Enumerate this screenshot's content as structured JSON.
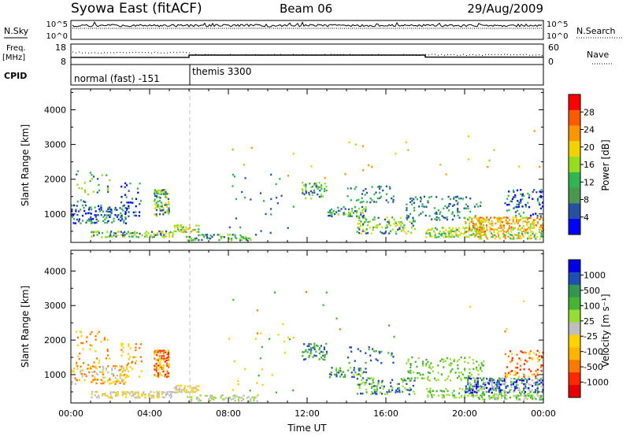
{
  "header": {
    "station": "Syowa East (fitACF)",
    "beam": "Beam 06",
    "date": "29/Aug/2009"
  },
  "sky_panel": {
    "left_label": "N.Sky",
    "left_ticks": [
      "10^5",
      "10^0"
    ],
    "right_ticks": [
      "10^5",
      "10^0"
    ],
    "right_label": "N.Search"
  },
  "freq_panel": {
    "left_label_line1": "Freq.",
    "left_label_line2": "[MHz]",
    "left_ticks": [
      "18",
      "8"
    ],
    "right_ticks": [
      "60",
      "0"
    ],
    "right_label": "Nave",
    "freq_steps": [
      {
        "start_h": 0,
        "end_h": 6,
        "mhz": 11.5
      },
      {
        "start_h": 6,
        "end_h": 18,
        "mhz": 12.6
      },
      {
        "start_h": 18,
        "end_h": 24,
        "mhz": 11.6
      }
    ]
  },
  "cpid": {
    "label": "CPID",
    "modes": [
      {
        "name": "normal (fast) -151",
        "start_h": 0,
        "end_h": 6
      },
      {
        "name": "themis 3300",
        "start_h": 6,
        "end_h": 24
      }
    ]
  },
  "power_colorbar": {
    "label": "Power [dB]",
    "ticks": [
      "28",
      "24",
      "20",
      "16",
      "12",
      "8",
      "4"
    ],
    "colors": [
      "#ff0000",
      "#ff5a00",
      "#ff9600",
      "#f0d200",
      "#96dc1e",
      "#32b450",
      "#4b9650",
      "#2850a0",
      "#0000ff"
    ]
  },
  "velocity_colorbar": {
    "label": "Velocity [m s⁻¹]",
    "ticks": [
      "1000",
      "500",
      "100",
      "25",
      "-25",
      "-100",
      "-500",
      "-1000"
    ],
    "colors": [
      "#0000e6",
      "#1e50b4",
      "#329650",
      "#46b432",
      "#96dc32",
      "#bebebe",
      "#ffd200",
      "#ffb400",
      "#ff7800",
      "#ff2800",
      "#e60000"
    ]
  },
  "chart_data": [
    {
      "type": "heatmap",
      "name": "power",
      "xlabel": "",
      "ylabel": "Slant Range [km]",
      "xlim": [
        0,
        24
      ],
      "ylim": [
        180,
        4600
      ],
      "y_ticks": [
        1000,
        2000,
        3000,
        4000
      ],
      "x_ticks": [
        0,
        4,
        8,
        12,
        16,
        20,
        24
      ],
      "mode_change_h": 6,
      "regions": [
        {
          "t0": 0.0,
          "t1": 2.8,
          "r0": 700,
          "r1": 1250,
          "density": 0.35,
          "levels": [
            8,
            4,
            12
          ]
        },
        {
          "t0": 0.2,
          "t1": 2.0,
          "r0": 1250,
          "r1": 2250,
          "density": 0.1,
          "levels": [
            8,
            12,
            16
          ]
        },
        {
          "t0": 2.5,
          "t1": 3.6,
          "r0": 900,
          "r1": 1900,
          "density": 0.18,
          "levels": [
            8,
            4,
            12
          ]
        },
        {
          "t0": 4.2,
          "t1": 5.0,
          "r0": 900,
          "r1": 1700,
          "density": 0.55,
          "levels": [
            12,
            16,
            8,
            20
          ]
        },
        {
          "t0": 1.0,
          "t1": 5.2,
          "r0": 300,
          "r1": 500,
          "density": 0.45,
          "levels": [
            12,
            16,
            20,
            8
          ]
        },
        {
          "t0": 5.2,
          "t1": 6.5,
          "r0": 450,
          "r1": 680,
          "density": 0.55,
          "levels": [
            12,
            16,
            20,
            24
          ]
        },
        {
          "t0": 5.8,
          "t1": 9.5,
          "r0": 200,
          "r1": 400,
          "density": 0.3,
          "levels": [
            8,
            12,
            16
          ]
        },
        {
          "t0": 8.0,
          "t1": 11.5,
          "r0": 400,
          "r1": 2200,
          "density": 0.02,
          "levels": [
            8,
            12
          ]
        },
        {
          "t0": 11.7,
          "t1": 13.0,
          "r0": 1400,
          "r1": 1900,
          "density": 0.35,
          "levels": [
            8,
            12,
            16
          ]
        },
        {
          "t0": 13.0,
          "t1": 15.0,
          "r0": 900,
          "r1": 1200,
          "density": 0.35,
          "levels": [
            8,
            12,
            16
          ]
        },
        {
          "t0": 14.0,
          "t1": 16.5,
          "r0": 1300,
          "r1": 1800,
          "density": 0.15,
          "levels": [
            8,
            12
          ]
        },
        {
          "t0": 14.5,
          "t1": 17.5,
          "r0": 400,
          "r1": 900,
          "density": 0.3,
          "levels": [
            8,
            12,
            16,
            20
          ]
        },
        {
          "t0": 17.0,
          "t1": 21.0,
          "r0": 800,
          "r1": 1500,
          "density": 0.18,
          "levels": [
            8,
            12
          ]
        },
        {
          "t0": 18.0,
          "t1": 21.0,
          "r0": 300,
          "r1": 600,
          "density": 0.4,
          "levels": [
            12,
            16,
            20
          ]
        },
        {
          "t0": 20.0,
          "t1": 24.0,
          "r0": 450,
          "r1": 900,
          "density": 0.5,
          "levels": [
            20,
            24,
            28,
            16
          ]
        },
        {
          "t0": 20.5,
          "t1": 24.0,
          "r0": 250,
          "r1": 450,
          "density": 0.45,
          "levels": [
            16,
            20,
            24,
            12
          ]
        },
        {
          "t0": 22.0,
          "t1": 24.0,
          "r0": 900,
          "r1": 1700,
          "density": 0.2,
          "levels": [
            8,
            12,
            4
          ]
        },
        {
          "t0": 8.0,
          "t1": 24.0,
          "r0": 2000,
          "r1": 3400,
          "density": 0.004,
          "levels": [
            16,
            20,
            24
          ]
        }
      ]
    },
    {
      "type": "heatmap",
      "name": "velocity",
      "xlabel": "Time UT",
      "ylabel": "Slant Range [km]",
      "xlim": [
        0,
        24
      ],
      "ylim": [
        180,
        4600
      ],
      "y_ticks": [
        1000,
        2000,
        3000,
        4000
      ],
      "x_ticks": [
        0,
        4,
        8,
        12,
        16,
        20,
        24
      ],
      "x_tick_labels": [
        "00:00",
        "04:00",
        "08:00",
        "12:00",
        "16:00",
        "20:00",
        "00:00"
      ],
      "mode_change_h": 6,
      "regions": [
        {
          "t0": 0.0,
          "t1": 2.8,
          "r0": 700,
          "r1": 1250,
          "density": 0.35,
          "levels": [
            -100,
            -500,
            -25
          ]
        },
        {
          "t0": 0.2,
          "t1": 2.0,
          "r0": 1250,
          "r1": 2250,
          "density": 0.1,
          "levels": [
            -100,
            -500
          ]
        },
        {
          "t0": 2.5,
          "t1": 3.6,
          "r0": 900,
          "r1": 1900,
          "density": 0.18,
          "levels": [
            -100,
            -500
          ]
        },
        {
          "t0": 4.2,
          "t1": 5.0,
          "r0": 900,
          "r1": 1700,
          "density": 0.55,
          "levels": [
            -500,
            -100,
            -1000
          ]
        },
        {
          "t0": 1.0,
          "t1": 5.2,
          "r0": 300,
          "r1": 500,
          "density": 0.45,
          "levels": [
            -25,
            -100
          ]
        },
        {
          "t0": 5.2,
          "t1": 6.5,
          "r0": 450,
          "r1": 680,
          "density": 0.55,
          "levels": [
            -25,
            -100
          ]
        },
        {
          "t0": 5.8,
          "t1": 9.5,
          "r0": 200,
          "r1": 400,
          "density": 0.3,
          "levels": [
            25,
            -25
          ]
        },
        {
          "t0": 8.0,
          "t1": 11.5,
          "r0": 400,
          "r1": 2200,
          "density": 0.02,
          "levels": [
            -100,
            100
          ]
        },
        {
          "t0": 11.7,
          "t1": 13.0,
          "r0": 1400,
          "r1": 1900,
          "density": 0.35,
          "levels": [
            100,
            500
          ]
        },
        {
          "t0": 13.0,
          "t1": 15.0,
          "r0": 900,
          "r1": 1200,
          "density": 0.35,
          "levels": [
            100,
            500,
            25
          ]
        },
        {
          "t0": 14.0,
          "t1": 16.5,
          "r0": 1300,
          "r1": 1800,
          "density": 0.15,
          "levels": [
            100,
            500
          ]
        },
        {
          "t0": 14.5,
          "t1": 17.5,
          "r0": 400,
          "r1": 900,
          "density": 0.3,
          "levels": [
            100,
            25,
            500
          ]
        },
        {
          "t0": 17.0,
          "t1": 21.0,
          "r0": 800,
          "r1": 1500,
          "density": 0.18,
          "levels": [
            100,
            25
          ]
        },
        {
          "t0": 18.0,
          "t1": 21.0,
          "r0": 300,
          "r1": 600,
          "density": 0.4,
          "levels": [
            25,
            100
          ]
        },
        {
          "t0": 20.0,
          "t1": 24.0,
          "r0": 450,
          "r1": 900,
          "density": 0.5,
          "levels": [
            500,
            100,
            -25,
            1000
          ]
        },
        {
          "t0": 20.5,
          "t1": 24.0,
          "r0": 250,
          "r1": 450,
          "density": 0.45,
          "levels": [
            25,
            -25,
            100
          ]
        },
        {
          "t0": 22.0,
          "t1": 24.0,
          "r0": 900,
          "r1": 1700,
          "density": 0.2,
          "levels": [
            -500,
            -1000,
            -100
          ]
        },
        {
          "t0": 8.0,
          "t1": 24.0,
          "r0": 2000,
          "r1": 3400,
          "density": 0.004,
          "levels": [
            -100,
            -500,
            100
          ]
        }
      ]
    }
  ]
}
